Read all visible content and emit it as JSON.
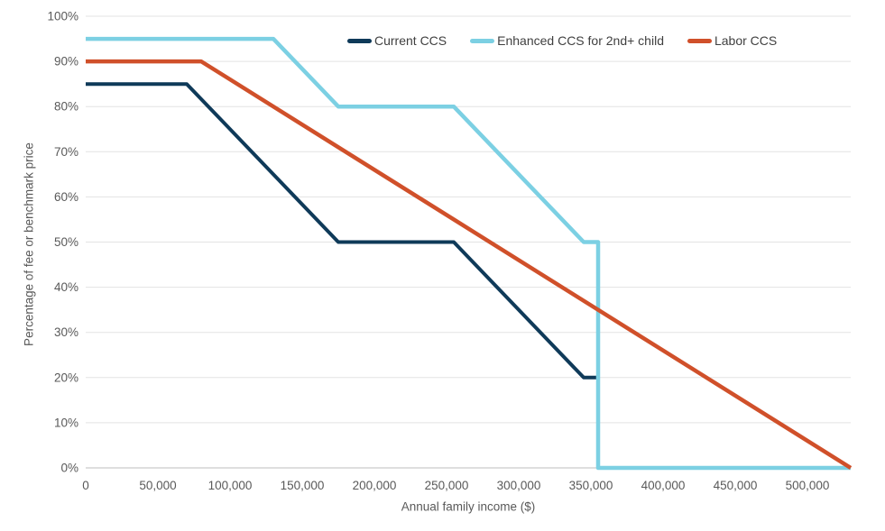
{
  "chart_data": {
    "type": "line",
    "title": "",
    "xlabel": "Annual family income ($)",
    "ylabel": "Percentage of fee or benchmark price",
    "xlim": [
      0,
      530000
    ],
    "ylim": [
      0,
      100
    ],
    "grid": "horizontal",
    "legend_position": "top-inside",
    "x_ticks": [
      0,
      50000,
      100000,
      150000,
      200000,
      250000,
      300000,
      350000,
      400000,
      450000,
      500000
    ],
    "x_tick_labels": [
      "0",
      "50,000",
      "100,000",
      "150,000",
      "200,000",
      "250,000",
      "300,000",
      "350,000",
      "400,000",
      "450,000",
      "500,000"
    ],
    "y_ticks": [
      0,
      10,
      20,
      30,
      40,
      50,
      60,
      70,
      80,
      90,
      100
    ],
    "y_tick_labels": [
      "0%",
      "10%",
      "20%",
      "30%",
      "40%",
      "50%",
      "60%",
      "70%",
      "80%",
      "90%",
      "100%"
    ],
    "series": [
      {
        "name": "Current CCS",
        "color": "#0f3a59",
        "stroke_width": 4,
        "points": [
          [
            0,
            85
          ],
          [
            70000,
            85
          ],
          [
            175000,
            50
          ],
          [
            255000,
            50
          ],
          [
            345000,
            20
          ],
          [
            355000,
            20
          ],
          [
            355000,
            0
          ]
        ]
      },
      {
        "name": "Enhanced CCS for 2nd+ child",
        "color": "#7cd0e3",
        "stroke_width": 4.5,
        "points": [
          [
            0,
            95
          ],
          [
            130000,
            95
          ],
          [
            175000,
            80
          ],
          [
            255000,
            80
          ],
          [
            345000,
            50
          ],
          [
            355000,
            50
          ],
          [
            355000,
            0
          ],
          [
            530000,
            0
          ]
        ]
      },
      {
        "name": "Labor CCS",
        "color": "#d0502a",
        "stroke_width": 4.5,
        "points": [
          [
            0,
            90
          ],
          [
            80000,
            90
          ],
          [
            530000,
            0
          ]
        ]
      }
    ],
    "style": {
      "grid_color": "#e3e3e3",
      "zero_line_color": "#bdbdbd",
      "tick_text_color": "#595959",
      "legend_text_color": "#3f3f3f",
      "background": "#ffffff"
    }
  }
}
